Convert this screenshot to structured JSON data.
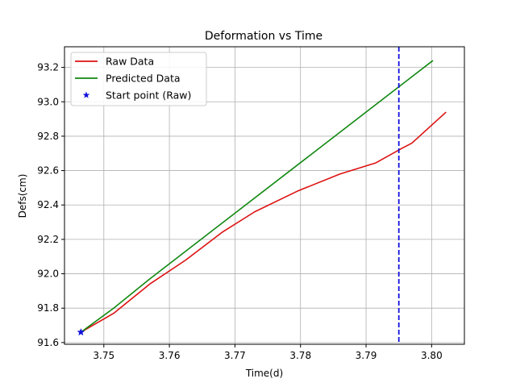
{
  "chart_data": {
    "type": "line",
    "title": "Deformation vs Time",
    "xlabel": "Time(d)",
    "ylabel": "Defs(cm)",
    "xlim": [
      3.744,
      3.805
    ],
    "ylim": [
      91.59,
      93.32
    ],
    "xticks": [
      3.75,
      3.76,
      3.77,
      3.78,
      3.79,
      3.8
    ],
    "xtick_labels": [
      "3.75",
      "3.76",
      "3.77",
      "3.78",
      "3.79",
      "3.80"
    ],
    "yticks": [
      91.6,
      91.8,
      92.0,
      92.2,
      92.4,
      92.6,
      92.8,
      93.0,
      93.2
    ],
    "ytick_labels": [
      "91.6",
      "91.8",
      "92.0",
      "92.2",
      "92.4",
      "92.6",
      "92.8",
      "93.0",
      "93.2"
    ],
    "grid": true,
    "legend_position": "top-left",
    "series": [
      {
        "name": "Raw Data",
        "color": "#dd1111",
        "style": "line",
        "x": [
          3.7465,
          3.7515,
          3.757,
          3.7625,
          3.768,
          3.773,
          3.7795,
          3.786,
          3.7915,
          3.7955,
          3.797,
          3.8022
        ],
        "y": [
          91.66,
          91.77,
          91.94,
          92.08,
          92.24,
          92.36,
          92.48,
          92.58,
          92.645,
          92.73,
          92.76,
          92.94
        ]
      },
      {
        "name": "Predicted Data",
        "color": "#118811",
        "style": "line",
        "x": [
          3.7465,
          3.7515,
          3.757,
          3.8002
        ],
        "y": [
          91.66,
          91.8,
          91.97,
          93.24
        ]
      },
      {
        "name": "Start point (Raw)",
        "color": "#1111dd",
        "style": "marker-star",
        "x": [
          3.7465
        ],
        "y": [
          91.66
        ]
      }
    ],
    "vline": {
      "x": 3.795,
      "color": "#1111dd",
      "style": "dashed"
    }
  }
}
